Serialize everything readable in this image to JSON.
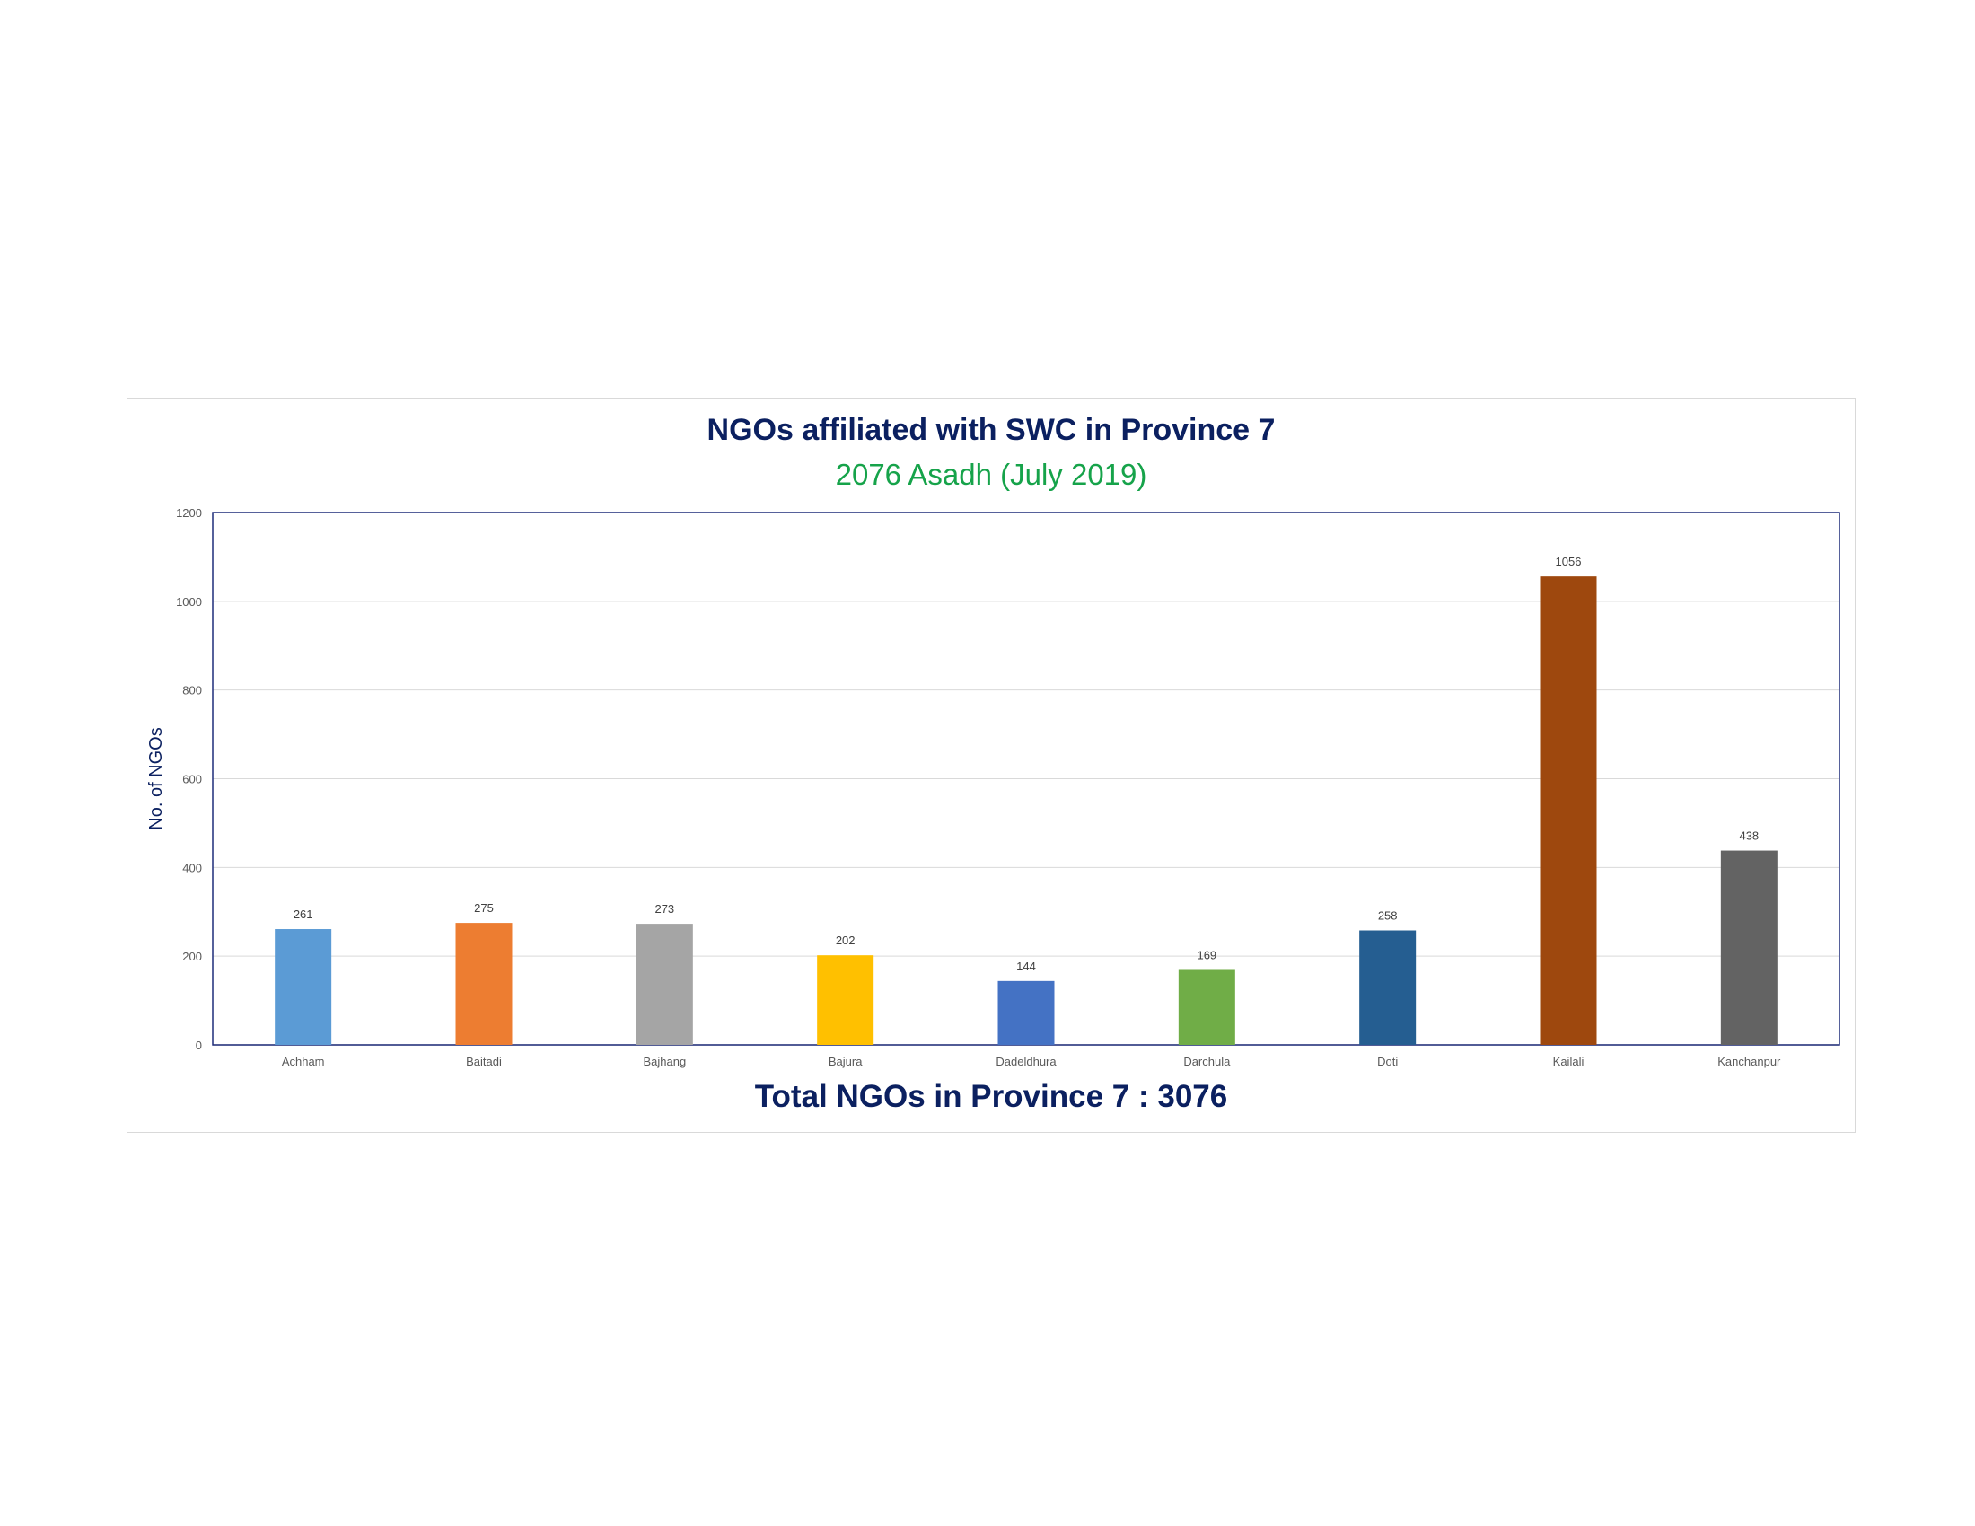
{
  "chart_data": {
    "type": "bar",
    "title": "NGOs affiliated with SWC in Province 7",
    "subtitle": "2076 Asadh (July 2019)",
    "ylabel": "No. of NGOs",
    "xlabel": "",
    "footer": "Total NGOs in Province 7 : 3076",
    "categories": [
      "Achham",
      "Baitadi",
      "Bajhang",
      "Bajura",
      "Dadeldhura",
      "Darchula",
      "Doti",
      "Kailali",
      "Kanchanpur"
    ],
    "values": [
      261,
      275,
      273,
      202,
      144,
      169,
      258,
      1056,
      438
    ],
    "colors": [
      "#5b9bd5",
      "#ed7d31",
      "#a5a5a5",
      "#ffc000",
      "#4472c4",
      "#70ad47",
      "#255e91",
      "#9e480e",
      "#636363"
    ],
    "ylim": [
      0,
      1200
    ],
    "yticks": [
      0,
      200,
      400,
      600,
      800,
      1000,
      1200
    ],
    "grid": true,
    "legend": "none"
  }
}
